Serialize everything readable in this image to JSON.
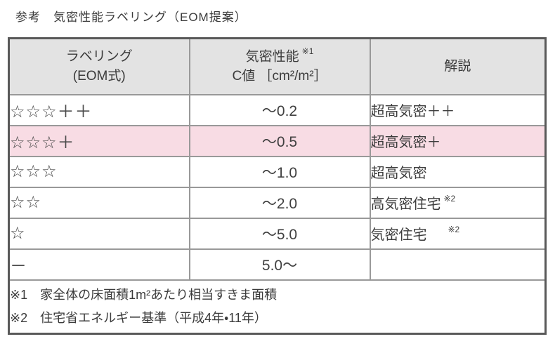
{
  "title": "参考　気密性能ラベリング（EOM提案）",
  "table": {
    "headers": {
      "col1_line1": "ラベリング",
      "col1_line2": "(EOM式)",
      "col2_line1": "気密性能",
      "col2_note_ref": "※1",
      "col2_line2": "C値 ［cm²/m²］",
      "col3": "解説"
    },
    "rows": [
      {
        "label": "☆☆☆＋＋",
        "cvalue": "～0.2",
        "desc": "超高気密＋＋",
        "desc_note_ref": "",
        "highlight": false
      },
      {
        "label": "☆☆☆＋",
        "cvalue": "～0.5",
        "desc": "超高気密＋",
        "desc_note_ref": "",
        "highlight": true
      },
      {
        "label": "☆☆☆",
        "cvalue": "～1.0",
        "desc": "超高気密",
        "desc_note_ref": "",
        "highlight": false
      },
      {
        "label": "☆☆",
        "cvalue": "～2.0",
        "desc": "高気密住宅",
        "desc_note_ref": "※2",
        "highlight": false
      },
      {
        "label": "☆",
        "cvalue": "～5.0",
        "desc": "気密住宅",
        "desc_note_ref": "※2",
        "highlight": false
      },
      {
        "label": "－",
        "cvalue": "5.0～",
        "desc": "",
        "desc_note_ref": "",
        "highlight": false
      }
    ],
    "notes": [
      "※1　家全体の床面積1m²あたり相当すきま面積",
      "※2　住宅省エネルギー基準（平成4年・11年）"
    ]
  },
  "colors": {
    "highlight_row": "#f8dce4",
    "header_bg": "#e3e3e3",
    "border": "#999999",
    "outer_border": "#595959",
    "text": "#404040"
  }
}
